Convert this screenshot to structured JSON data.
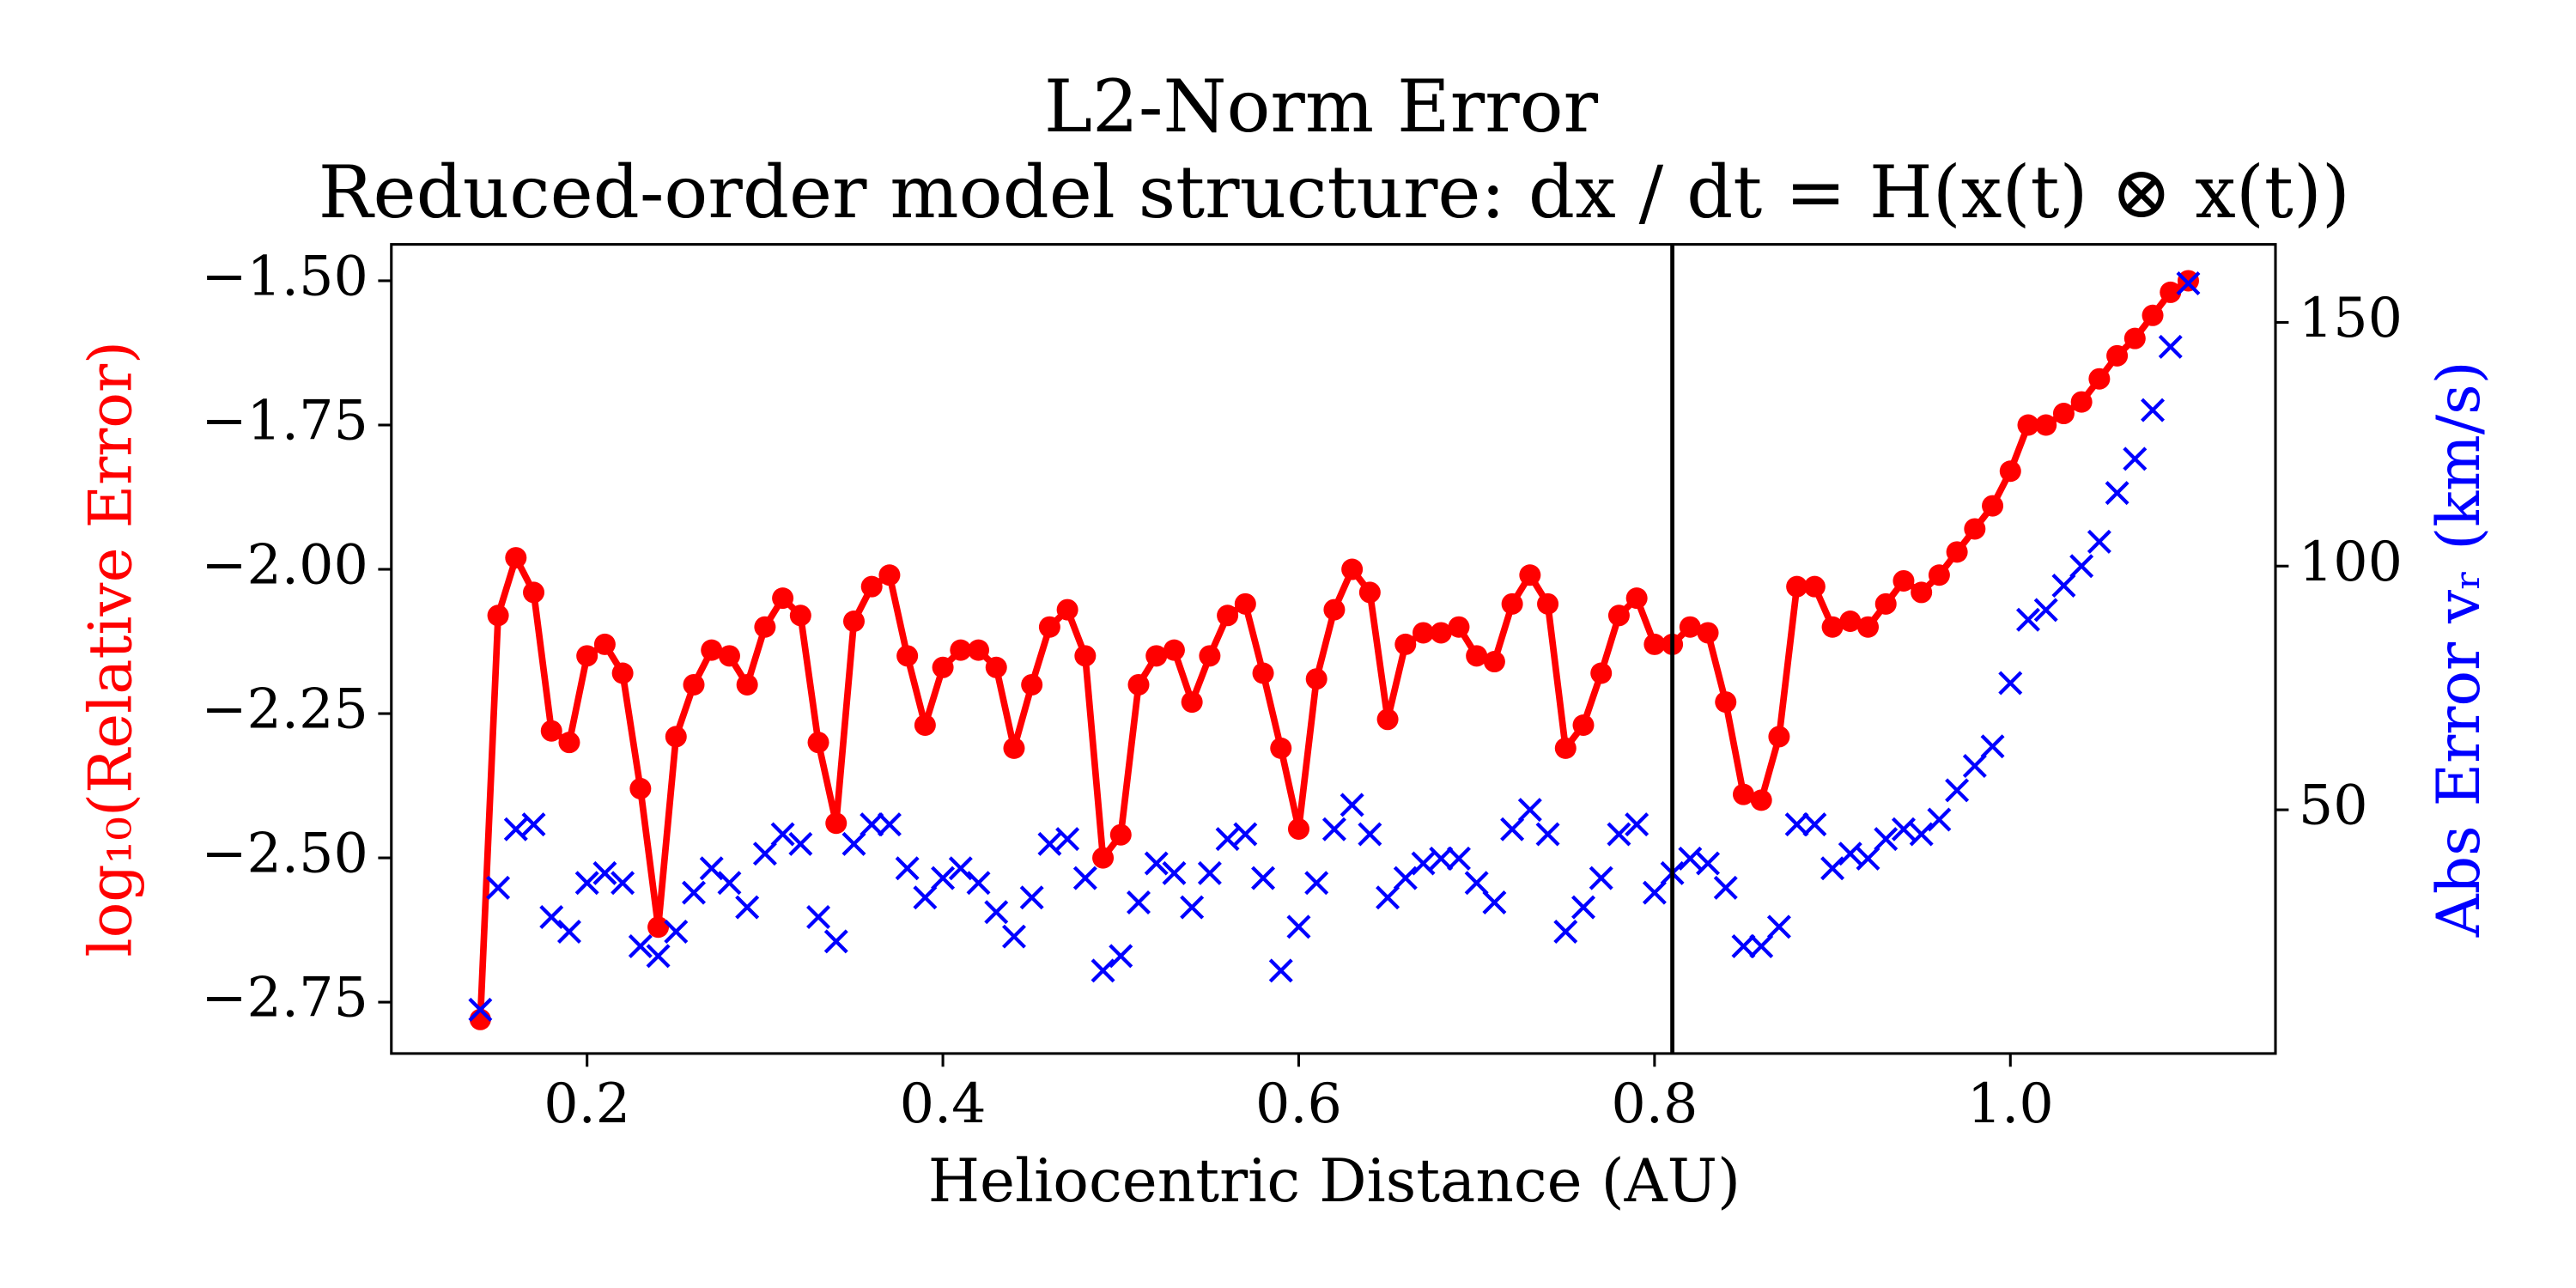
{
  "chart_data": {
    "type": "line",
    "title": "L2-Norm Error",
    "subtitle": "Reduced-order model structure: dx / dt = H(x(t) ⊗ x(t))",
    "xlabel": "Heliocentric Distance (AU)",
    "ylabel": "log₁₀(Relative Error)",
    "y2label": "Abs Error vᵣ (km/s)",
    "ylabel_color": "#ff0000",
    "y2label_color": "#0000ff",
    "x": [
      0.14,
      0.15,
      0.16,
      0.17,
      0.18,
      0.19,
      0.2,
      0.21,
      0.22,
      0.23,
      0.24,
      0.25,
      0.26,
      0.27,
      0.28,
      0.29,
      0.3,
      0.31,
      0.32,
      0.33,
      0.34,
      0.35,
      0.36,
      0.37,
      0.38,
      0.39,
      0.4,
      0.41,
      0.42,
      0.43,
      0.44,
      0.45,
      0.46,
      0.47,
      0.48,
      0.49,
      0.5,
      0.51,
      0.52,
      0.53,
      0.54,
      0.55,
      0.56,
      0.57,
      0.58,
      0.59,
      0.6,
      0.61,
      0.62,
      0.63,
      0.64,
      0.65,
      0.66,
      0.67,
      0.68,
      0.69,
      0.7,
      0.71,
      0.72,
      0.73,
      0.74,
      0.75,
      0.76,
      0.77,
      0.78,
      0.79,
      0.8,
      0.81,
      0.82,
      0.83,
      0.84,
      0.85,
      0.86,
      0.87,
      0.88,
      0.89,
      0.9,
      0.91,
      0.92,
      0.93,
      0.94,
      0.95,
      0.96,
      0.97,
      0.98,
      0.99,
      1.0,
      1.01,
      1.02,
      1.03,
      1.04,
      1.05,
      1.06,
      1.07,
      1.08,
      1.09,
      1.1
    ],
    "series": [
      {
        "color": "#ff0000",
        "marker": "o",
        "line": true,
        "axis": "y",
        "values": [
          -2.78,
          -2.08,
          -1.98,
          -2.04,
          -2.28,
          -2.3,
          -2.15,
          -2.13,
          -2.18,
          -2.38,
          -2.62,
          -2.29,
          -2.2,
          -2.14,
          -2.15,
          -2.2,
          -2.1,
          -2.05,
          -2.08,
          -2.3,
          -2.44,
          -2.09,
          -2.03,
          -2.01,
          -2.15,
          -2.27,
          -2.17,
          -2.14,
          -2.14,
          -2.17,
          -2.31,
          -2.2,
          -2.1,
          -2.07,
          -2.15,
          -2.5,
          -2.46,
          -2.2,
          -2.15,
          -2.14,
          -2.23,
          -2.15,
          -2.08,
          -2.06,
          -2.18,
          -2.31,
          -2.45,
          -2.19,
          -2.07,
          -2.0,
          -2.04,
          -2.26,
          -2.13,
          -2.11,
          -2.11,
          -2.1,
          -2.15,
          -2.16,
          -2.06,
          -2.01,
          -2.06,
          -2.31,
          -2.27,
          -2.18,
          -2.08,
          -2.05,
          -2.13,
          -2.13,
          -2.1,
          -2.11,
          -2.23,
          -2.39,
          -2.4,
          -2.29,
          -2.03,
          -2.03,
          -2.1,
          -2.09,
          -2.1,
          -2.06,
          -2.02,
          -2.04,
          -2.01,
          -1.97,
          -1.93,
          -1.89,
          -1.83,
          -1.75,
          -1.75,
          -1.73,
          -1.71,
          -1.67,
          -1.63,
          -1.6,
          -1.56,
          -1.52,
          -1.5
        ]
      },
      {
        "color": "#0000ff",
        "marker": "x",
        "line": false,
        "axis": "y2",
        "values": [
          9,
          34,
          46,
          47,
          28,
          25,
          35,
          37,
          35,
          22,
          20,
          25,
          33,
          38,
          35,
          30,
          41,
          45,
          43,
          28,
          23,
          43,
          47,
          47,
          38,
          32,
          36,
          38,
          35,
          29,
          24,
          32,
          43,
          44,
          36,
          17,
          20,
          31,
          39,
          37,
          30,
          37,
          44,
          45,
          36,
          17,
          26,
          35,
          46,
          51,
          45,
          32,
          36,
          39,
          40,
          40,
          35,
          31,
          46,
          50,
          45,
          25,
          30,
          36,
          45,
          47,
          33,
          37,
          40,
          39,
          34,
          22,
          22,
          26,
          47,
          47,
          38,
          41,
          40,
          44,
          46,
          45,
          48,
          54,
          59,
          63,
          76,
          89,
          91,
          96,
          100,
          105,
          115,
          122,
          132,
          145,
          158
        ]
      }
    ],
    "vline": 0.81,
    "xlim": [
      0.09,
      1.149
    ],
    "ylim": [
      -2.839,
      -1.437
    ],
    "y2lim": [
      0,
      166
    ],
    "xticks": [
      0.2,
      0.4,
      0.6,
      0.8,
      {
        "value": 1.0,
        "label": "1.0"
      }
    ],
    "yticks": [
      {
        "value": -1.5,
        "label": "−1.50"
      },
      {
        "value": -1.75,
        "label": "−1.75"
      },
      {
        "value": -2.0,
        "label": "−2.00"
      },
      {
        "value": -2.25,
        "label": "−2.25"
      },
      {
        "value": -2.5,
        "label": "−2.50"
      },
      {
        "value": -2.75,
        "label": "−2.75"
      }
    ],
    "y2ticks": [
      50,
      100,
      150
    ],
    "grid": false
  }
}
